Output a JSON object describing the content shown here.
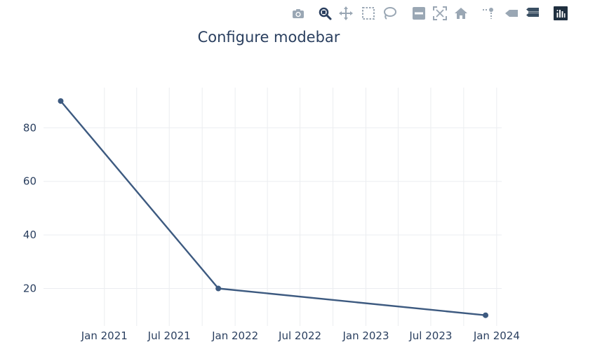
{
  "modebar": {
    "buttons": [
      {
        "name": "camera-icon",
        "title": "Download plot as a png"
      },
      {
        "name": "zoom-icon",
        "title": "Zoom"
      },
      {
        "name": "pan-icon",
        "title": "Pan"
      },
      {
        "name": "box-select-icon",
        "title": "Box Select"
      },
      {
        "name": "lasso-select-icon",
        "title": "Lasso Select"
      },
      {
        "name": "zoom-out-icon",
        "title": "Zoom out"
      },
      {
        "name": "autoscale-icon",
        "title": "Autoscale"
      },
      {
        "name": "home-icon",
        "title": "Reset axes"
      },
      {
        "name": "spike-lines-icon",
        "title": "Toggle Spike Lines"
      },
      {
        "name": "hover-closest-icon",
        "title": "Show closest data on hover"
      },
      {
        "name": "hover-compare-icon",
        "title": "Compare data on hover"
      },
      {
        "name": "plotly-logo-icon",
        "title": "Produced with Plotly"
      }
    ],
    "colors": {
      "icon": "#9aa7b4",
      "active_icon": "#2a3f5f",
      "dark_icon": "#3a4f63",
      "logo_bg": "#1f2f3f"
    }
  },
  "chart_data": {
    "type": "line",
    "title": "Configure modebar",
    "xlabel": "",
    "ylabel": "",
    "x": [
      "2020-09-01",
      "2021-11-15",
      "2023-12-01"
    ],
    "y": [
      90,
      20,
      10
    ],
    "xlim": [
      "2020-07-15",
      "2024-01-15"
    ],
    "ylim": [
      6,
      95
    ],
    "x_ticks": [
      {
        "date": "2021-01-01",
        "label": "Jan 2021"
      },
      {
        "date": "2021-07-01",
        "label": "Jul 2021"
      },
      {
        "date": "2022-01-01",
        "label": "Jan 2022"
      },
      {
        "date": "2022-07-01",
        "label": "Jul 2022"
      },
      {
        "date": "2023-01-01",
        "label": "Jan 2023"
      },
      {
        "date": "2023-07-01",
        "label": "Jul 2023"
      },
      {
        "date": "2024-01-01",
        "label": "Jan 2024"
      }
    ],
    "y_ticks": [
      20,
      40,
      60,
      80
    ],
    "grid": true,
    "colors": {
      "line": "#3d5a80",
      "grid": "#ebedf0",
      "text": "#2a3f5f"
    }
  }
}
